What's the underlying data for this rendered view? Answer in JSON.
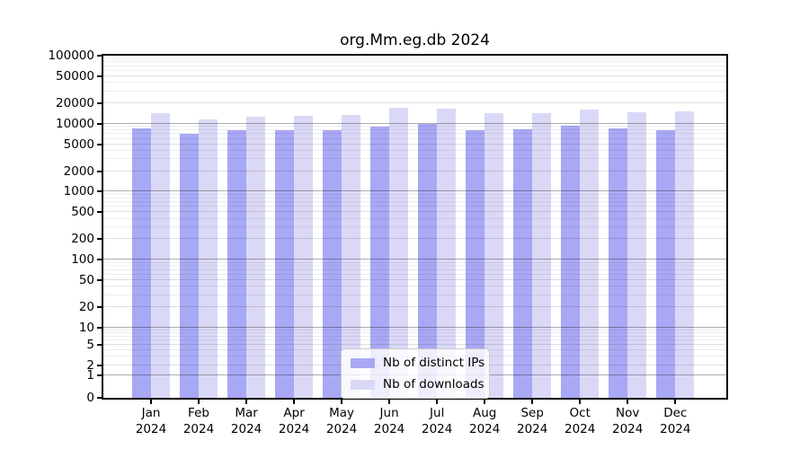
{
  "title": "org.Mm.eg.db 2024",
  "chart_data": {
    "type": "bar",
    "title": "org.Mm.eg.db 2024",
    "xlabel": "",
    "ylabel": "",
    "yscale": "log-with-zero",
    "ylim": [
      0,
      100000
    ],
    "grid": true,
    "legend_position": "lower center",
    "categories": [
      "Jan",
      "Feb",
      "Mar",
      "Apr",
      "May",
      "Jun",
      "Jul",
      "Aug",
      "Sep",
      "Oct",
      "Nov",
      "Dec"
    ],
    "year_label": "2024",
    "yticks": [
      100000,
      50000,
      20000,
      10000,
      5000,
      2000,
      1000,
      500,
      200,
      100,
      50,
      20,
      10,
      5,
      2,
      1,
      0
    ],
    "series": [
      {
        "name": "Nb of distinct IPs",
        "color": "#a8a8f5",
        "values": [
          8400,
          7000,
          8100,
          7900,
          8100,
          9100,
          9900,
          8000,
          8200,
          9400,
          8500,
          8000
        ]
      },
      {
        "name": "Nb of downloads",
        "color": "#d9d9f7",
        "values": [
          14100,
          11400,
          12800,
          13100,
          13500,
          17000,
          16500,
          14200,
          14400,
          16000,
          14800,
          15200
        ]
      }
    ]
  }
}
